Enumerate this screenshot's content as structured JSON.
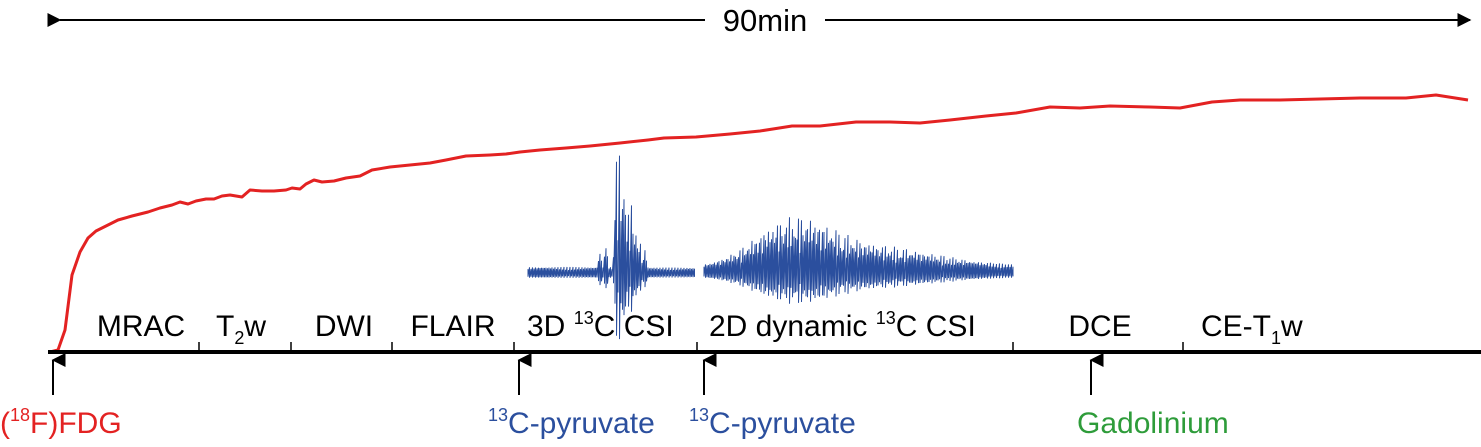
{
  "duration": {
    "label": "90min"
  },
  "colors": {
    "fdg": "#e32222",
    "pyruvate": "#2b4f9e",
    "gadolinium": "#2e9c3a",
    "axis": "#000000"
  },
  "sequences": {
    "mrac": "MRAC",
    "t2w": {
      "base": "T",
      "sub": "2",
      "tail": "w"
    },
    "dwi": "DWI",
    "flair": "FLAIR",
    "csi3d": {
      "pre": "3D ",
      "sup": "13",
      "post": "C CSI"
    },
    "csi2d": {
      "pre": "2D dynamic ",
      "sup": "13",
      "post": "C CSI"
    },
    "dce": "DCE",
    "cet1w": {
      "base": "CE-T",
      "sub": "1",
      "tail": "w"
    }
  },
  "injections": {
    "fdg": {
      "open": "(",
      "sup": "18",
      "post": "F)FDG"
    },
    "pyruvate1": {
      "sup": "13",
      "post": "C-pyruvate"
    },
    "pyruvate2": {
      "sup": "13",
      "post": "C-pyruvate"
    },
    "gadolinium": "Gadolinium"
  }
}
